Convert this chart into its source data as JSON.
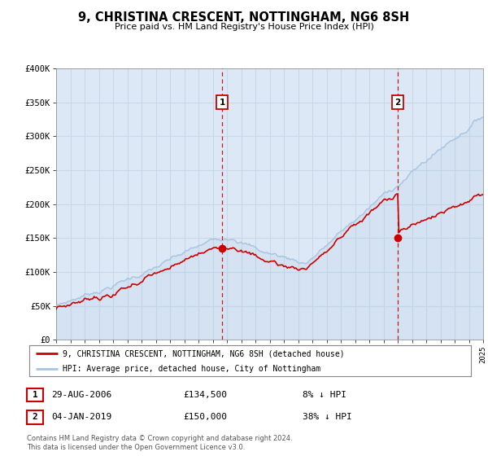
{
  "title": "9, CHRISTINA CRESCENT, NOTTINGHAM, NG6 8SH",
  "subtitle": "Price paid vs. HM Land Registry's House Price Index (HPI)",
  "legend_line1": "9, CHRISTINA CRESCENT, NOTTINGHAM, NG6 8SH (detached house)",
  "legend_line2": "HPI: Average price, detached house, City of Nottingham",
  "marker1_date": "29-AUG-2006",
  "marker1_price": 134500,
  "marker1_year": 2006.66,
  "marker2_date": "04-JAN-2019",
  "marker2_price": 150000,
  "marker2_year": 2019.01,
  "xmin": 1995,
  "xmax": 2025,
  "ymin": 0,
  "ymax": 400000,
  "bg_color": "#dce8f5",
  "fig_color": "#ffffff",
  "grid_color": "#c8d8e8",
  "hpi_color": "#a8c4e0",
  "sale_color": "#cc0000",
  "marker_color": "#cc0000",
  "dashed_line_color": "#cc0000",
  "footnote1": "Contains HM Land Registry data © Crown copyright and database right 2024.",
  "footnote2": "This data is licensed under the Open Government Licence v3.0."
}
